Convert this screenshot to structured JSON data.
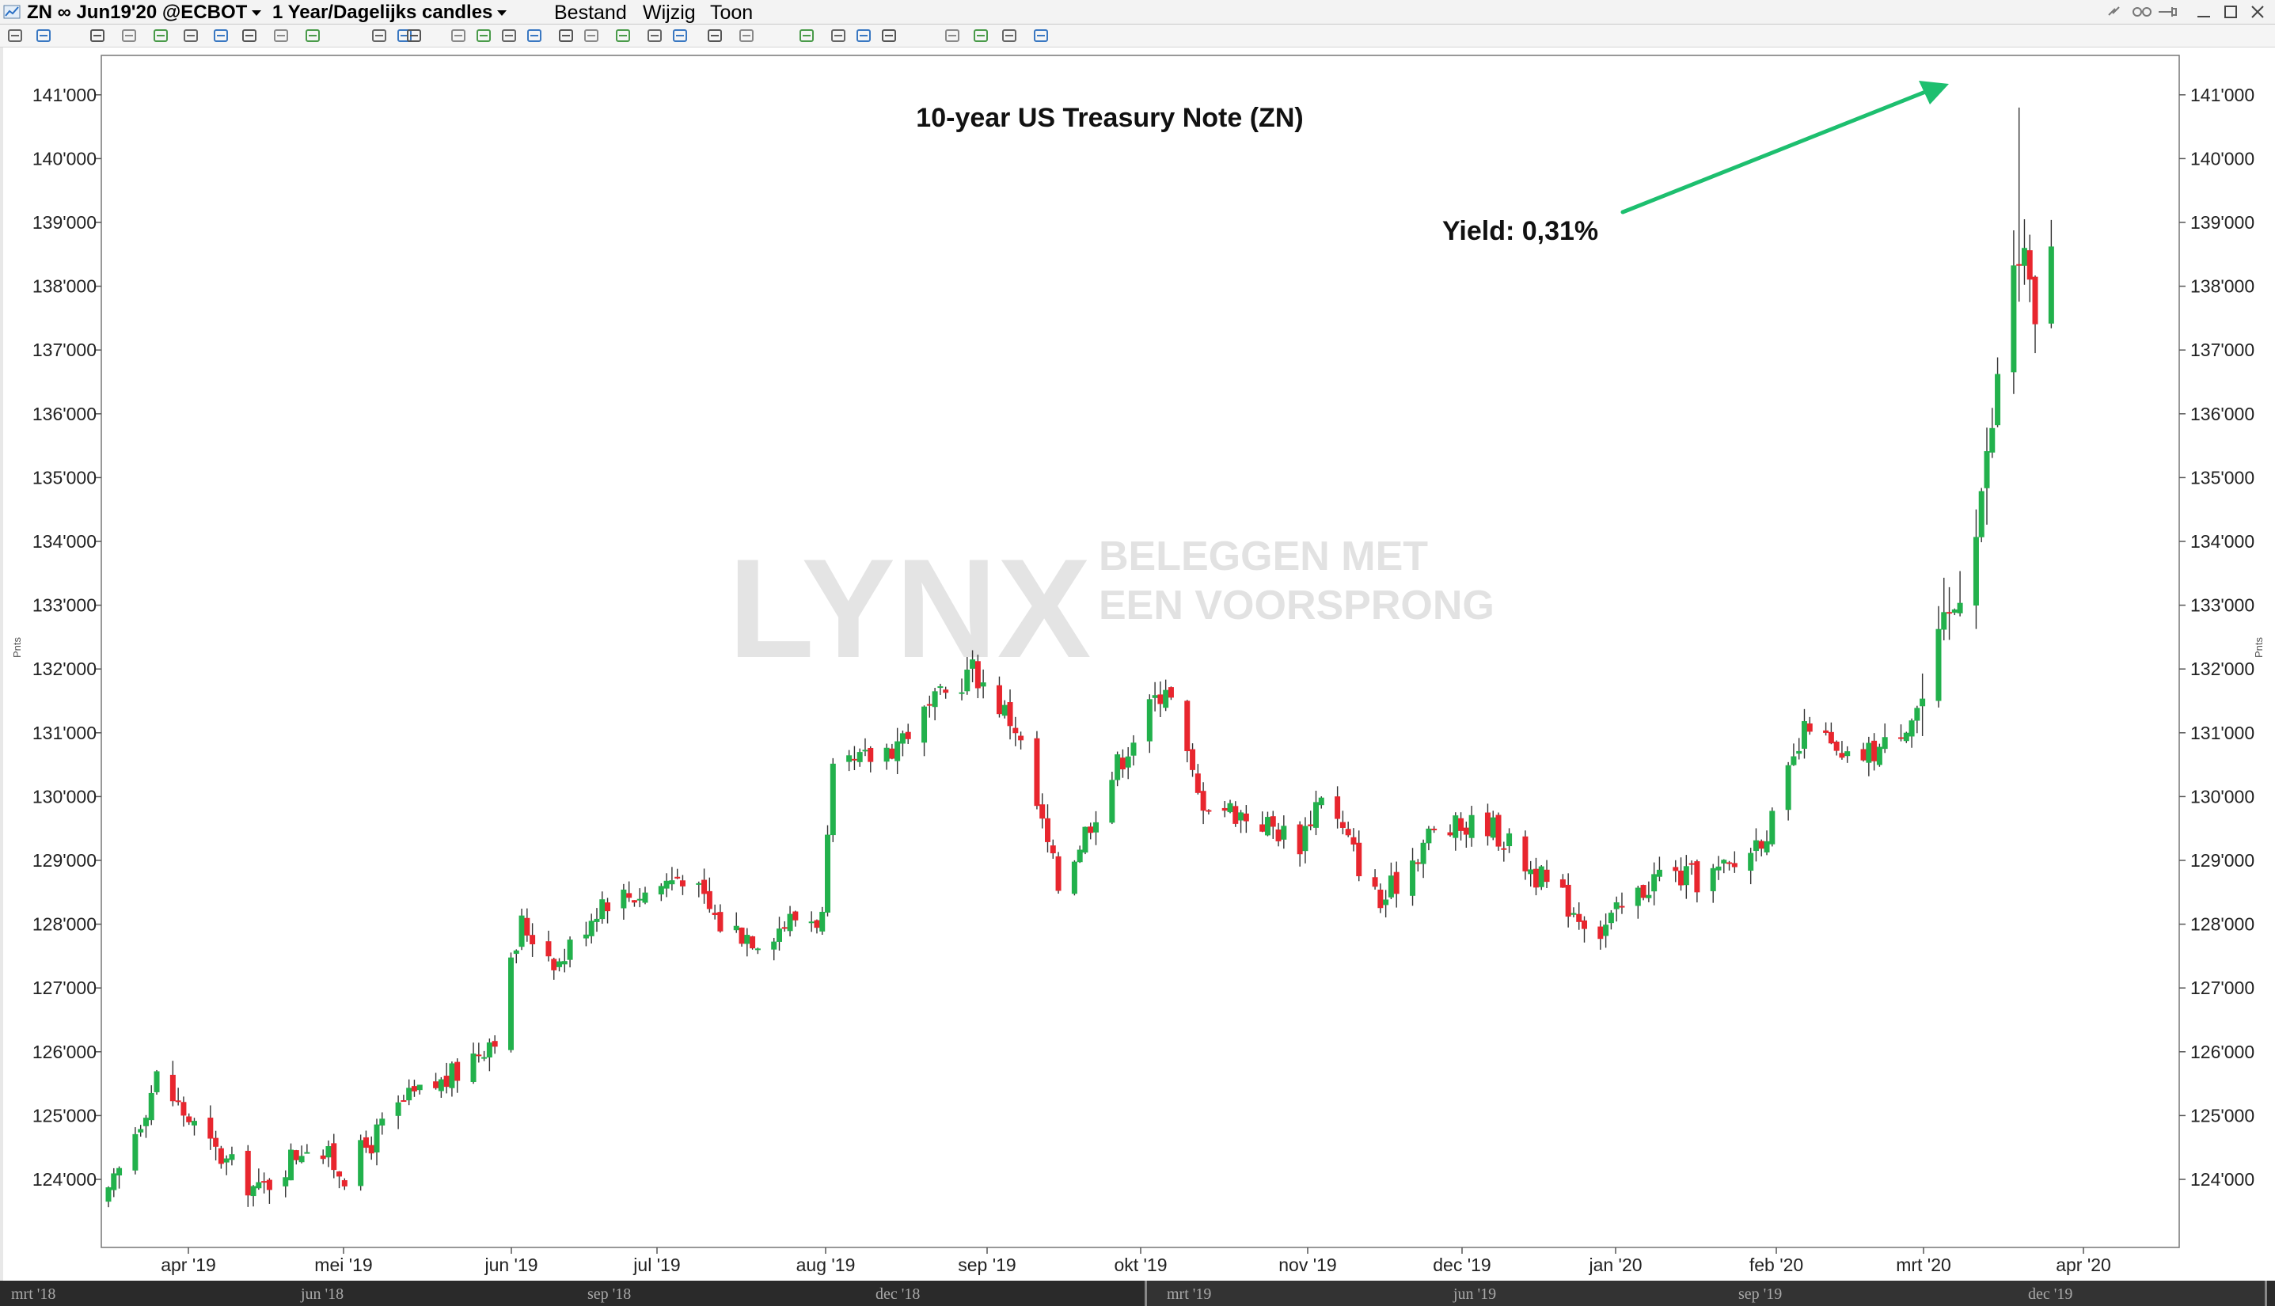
{
  "titlebar": {
    "symbol": "ZN ∞ Jun19'20 @ECBOT",
    "period": "1 Year/Dagelijks candles",
    "menu": [
      "Bestand",
      "Wijzig",
      "Toon"
    ]
  },
  "chart_data": {
    "type": "candlestick",
    "title": "10-year US Treasury Note (ZN)",
    "annotation": "Yield: 0,31%",
    "watermark_text": "LYNX",
    "watermark_tagline": [
      "BELEGGEN MET",
      "EEN VOORSPRONG"
    ],
    "y_axis_side_label": "Pnts",
    "ylim": [
      123.4,
      141.2
    ],
    "y_ticks": [
      "124'000",
      "125'000",
      "126'000",
      "127'000",
      "128'000",
      "129'000",
      "130'000",
      "131'000",
      "132'000",
      "133'000",
      "134'000",
      "135'000",
      "136'000",
      "137'000",
      "138'000",
      "139'000",
      "140'000",
      "141'000"
    ],
    "x_ticks": [
      "apr '19",
      "mei '19",
      "jun '19",
      "jul '19",
      "aug '19",
      "sep '19",
      "okt '19",
      "nov '19",
      "dec '19",
      "jan '20",
      "feb '20",
      "mrt '20",
      "apr '20"
    ],
    "up_color": "#22b14c",
    "down_color": "#e8262e",
    "arrow_color": "#1dbf6f",
    "grid": false,
    "legend": "none",
    "close_anchors": [
      {
        "date": "2019-03-20",
        "close": 123.7
      },
      {
        "date": "2019-03-29",
        "close": 125.6
      },
      {
        "date": "2019-04-08",
        "close": 124.5
      },
      {
        "date": "2019-04-17",
        "close": 123.8
      },
      {
        "date": "2019-04-26",
        "close": 124.6
      },
      {
        "date": "2019-05-03",
        "close": 124.1
      },
      {
        "date": "2019-05-14",
        "close": 125.2
      },
      {
        "date": "2019-05-23",
        "close": 125.6
      },
      {
        "date": "2019-05-31",
        "close": 126.3
      },
      {
        "date": "2019-06-05",
        "close": 128.0
      },
      {
        "date": "2019-06-12",
        "close": 127.4
      },
      {
        "date": "2019-06-20",
        "close": 128.4
      },
      {
        "date": "2019-06-28",
        "close": 128.5
      },
      {
        "date": "2019-07-05",
        "close": 128.8
      },
      {
        "date": "2019-07-12",
        "close": 128.0
      },
      {
        "date": "2019-07-19",
        "close": 127.8
      },
      {
        "date": "2019-07-26",
        "close": 128.1
      },
      {
        "date": "2019-07-31",
        "close": 128.1
      },
      {
        "date": "2019-08-02",
        "close": 130.3
      },
      {
        "date": "2019-08-13",
        "close": 130.8
      },
      {
        "date": "2019-08-23",
        "close": 131.6
      },
      {
        "date": "2019-08-28",
        "close": 132.0
      },
      {
        "date": "2019-09-05",
        "close": 131.1
      },
      {
        "date": "2019-09-13",
        "close": 128.6
      },
      {
        "date": "2019-09-24",
        "close": 130.5
      },
      {
        "date": "2019-10-03",
        "close": 131.8
      },
      {
        "date": "2019-10-09",
        "close": 130.0
      },
      {
        "date": "2019-10-21",
        "close": 129.6
      },
      {
        "date": "2019-10-28",
        "close": 129.3
      },
      {
        "date": "2019-11-01",
        "close": 130.1
      },
      {
        "date": "2019-11-12",
        "close": 128.3
      },
      {
        "date": "2019-11-21",
        "close": 129.4
      },
      {
        "date": "2019-12-02",
        "close": 129.6
      },
      {
        "date": "2019-12-13",
        "close": 128.6
      },
      {
        "date": "2019-12-23",
        "close": 127.9
      },
      {
        "date": "2020-01-03",
        "close": 128.8
      },
      {
        "date": "2020-01-10",
        "close": 128.7
      },
      {
        "date": "2020-01-17",
        "close": 128.9
      },
      {
        "date": "2020-01-24",
        "close": 129.6
      },
      {
        "date": "2020-01-31",
        "close": 131.2
      },
      {
        "date": "2020-02-06",
        "close": 130.5
      },
      {
        "date": "2020-02-14",
        "close": 130.8
      },
      {
        "date": "2020-02-21",
        "close": 131.5
      },
      {
        "date": "2020-02-27",
        "close": 133.0
      },
      {
        "date": "2020-03-04",
        "close": 135.2
      },
      {
        "date": "2020-03-09",
        "close": 138.4
      },
      {
        "date": "2020-03-11",
        "close": 138.4
      },
      {
        "date": "2020-03-13",
        "close": 137.2
      },
      {
        "date": "2020-03-16",
        "close": 138.8
      }
    ],
    "peak_high": 140.8
  },
  "navigator": {
    "labels": [
      "mrt '18",
      "jun '18",
      "sep '18",
      "dec '18",
      "mrt '19",
      "jun '19",
      "sep '19",
      "dec '19"
    ]
  }
}
